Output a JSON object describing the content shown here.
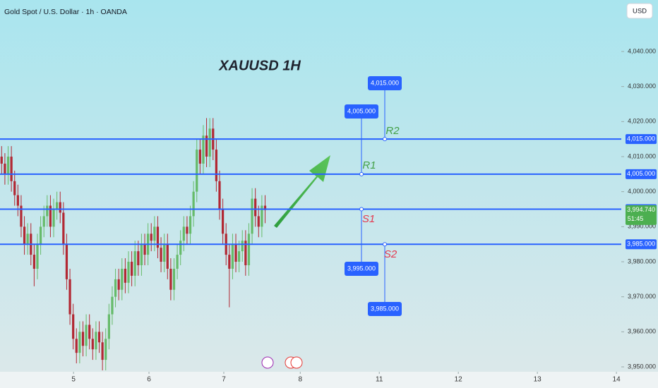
{
  "header": {
    "symbol": "Gold Spot / U.S. Dollar · 1h · OANDA",
    "currency": "USD"
  },
  "chart_data": {
    "type": "candlestick",
    "title": "XAUUSD 1H",
    "x": [
      0,
      1,
      2,
      3,
      4,
      5,
      6,
      7,
      8,
      9,
      10,
      11,
      12,
      13,
      14,
      15,
      16,
      17,
      18,
      19,
      20,
      21,
      22,
      23,
      24,
      25,
      26,
      27,
      28,
      29,
      30,
      31,
      32,
      33,
      34,
      35,
      36,
      37,
      38,
      39,
      40,
      41,
      42,
      43,
      44,
      45,
      46,
      47,
      48,
      49,
      50,
      51,
      52,
      53,
      54,
      55,
      56,
      57,
      58,
      59,
      60,
      61,
      62,
      63,
      64,
      65,
      66,
      67,
      68,
      69,
      70,
      71,
      72,
      73,
      74,
      75,
      76,
      77,
      78,
      79,
      80,
      81
    ],
    "open": [
      4010,
      4008,
      4005,
      4010,
      4003,
      3999,
      3996,
      3990,
      3985,
      3988,
      3982,
      3978,
      3985,
      3990,
      3993,
      3996,
      3990,
      3995,
      3997,
      3994,
      3985,
      3975,
      3965,
      3958,
      3954,
      3960,
      3956,
      3962,
      3958,
      3955,
      3960,
      3957,
      3952,
      3958,
      3965,
      3970,
      3975,
      3972,
      3978,
      3974,
      3980,
      3976,
      3983,
      3979,
      3985,
      3982,
      3988,
      3986,
      3990,
      3984,
      3980,
      3985,
      3978,
      3972,
      3978,
      3982,
      3986,
      3990,
      3988,
      3993,
      4000,
      4012,
      4008,
      4016,
      4010,
      4018,
      4012,
      4003,
      3995,
      3988,
      3982,
      3978,
      3985,
      3980,
      3983,
      3986,
      3979,
      3988,
      3998,
      3993,
      3990,
      3996
    ],
    "high": [
      4013,
      4011,
      4013,
      4013,
      4006,
      4002,
      3999,
      3993,
      3991,
      3991,
      3985,
      3988,
      3993,
      3996,
      3999,
      3999,
      3998,
      4000,
      4000,
      3997,
      3988,
      3978,
      3968,
      3961,
      3963,
      3963,
      3965,
      3965,
      3961,
      3963,
      3963,
      3960,
      3961,
      3968,
      3973,
      3978,
      3978,
      3981,
      3981,
      3983,
      3983,
      3986,
      3986,
      3988,
      3988,
      3991,
      3991,
      3993,
      3993,
      3987,
      3988,
      3988,
      3981,
      3981,
      3985,
      3989,
      3993,
      3993,
      3996,
      4003,
      4015,
      4015,
      4019,
      4021,
      4021,
      4021,
      4015,
      4006,
      3998,
      3991,
      3985,
      3988,
      3988,
      3986,
      3989,
      3989,
      3991,
      4001,
      4001,
      3996,
      3999,
      3999
    ],
    "low": [
      4005,
      4002,
      4002,
      4000,
      3996,
      3993,
      3987,
      3982,
      3982,
      3979,
      3973,
      3975,
      3982,
      3987,
      3990,
      3987,
      3987,
      3992,
      3991,
      3982,
      3972,
      3962,
      3955,
      3951,
      3951,
      3953,
      3953,
      3955,
      3952,
      3952,
      3954,
      3949,
      3949,
      3955,
      3962,
      3967,
      3969,
      3969,
      3971,
      3971,
      3973,
      3973,
      3976,
      3976,
      3979,
      3979,
      3983,
      3983,
      3981,
      3977,
      3977,
      3975,
      3969,
      3969,
      3975,
      3979,
      3983,
      3985,
      3985,
      3990,
      3997,
      4005,
      4005,
      4007,
      4007,
      4009,
      4000,
      3992,
      3985,
      3979,
      3967,
      3975,
      3977,
      3977,
      3980,
      3976,
      3976,
      3985,
      3990,
      3987,
      3987,
      3991
    ],
    "close": [
      4008,
      4005,
      4010,
      4003,
      3999,
      3996,
      3990,
      3985,
      3988,
      3982,
      3978,
      3985,
      3990,
      3993,
      3996,
      3990,
      3995,
      3997,
      3994,
      3985,
      3975,
      3965,
      3958,
      3954,
      3960,
      3956,
      3962,
      3958,
      3955,
      3960,
      3957,
      3952,
      3958,
      3965,
      3970,
      3975,
      3972,
      3978,
      3974,
      3980,
      3976,
      3983,
      3979,
      3985,
      3982,
      3988,
      3986,
      3990,
      3984,
      3980,
      3985,
      3978,
      3972,
      3978,
      3982,
      3986,
      3990,
      3988,
      3993,
      4000,
      4012,
      4008,
      4016,
      4010,
      4018,
      4012,
      4003,
      3995,
      3988,
      3982,
      3978,
      3985,
      3980,
      3983,
      3986,
      3979,
      3988,
      3998,
      3993,
      3990,
      3996,
      3994.74
    ],
    "up_color": "#66bb6a",
    "down_color": "#b22833",
    "xlim": [
      -0.5,
      190.5
    ],
    "xticks": [
      {
        "value": 22.1,
        "label": "5"
      },
      {
        "value": 45.3,
        "label": "6"
      },
      {
        "value": 68.3,
        "label": "7"
      },
      {
        "value": 91.8,
        "label": "8"
      },
      {
        "value": 116.1,
        "label": "11"
      },
      {
        "value": 140.4,
        "label": "12"
      },
      {
        "value": 164.7,
        "label": "13"
      },
      {
        "value": 189.0,
        "label": "14"
      }
    ],
    "ylim": [
      3949,
      4054.7
    ],
    "yticks": [
      {
        "value": 3950,
        "label": "3,950.000"
      },
      {
        "value": 3960,
        "label": "3,960.000"
      },
      {
        "value": 3970,
        "label": "3,970.000"
      },
      {
        "value": 3980,
        "label": "3,980.000"
      },
      {
        "value": 3990,
        "label": "3,990.000"
      },
      {
        "value": 4000,
        "label": "4,000.000"
      },
      {
        "value": 4010,
        "label": "4,010.000"
      },
      {
        "value": 4020,
        "label": "4,020.000"
      },
      {
        "value": 4030,
        "label": "4,030.000"
      },
      {
        "value": 4040,
        "label": "4,040.000"
      }
    ],
    "level_color": "#2962ff",
    "levels": [
      {
        "name": "R2",
        "value": 4015,
        "label": "4,015.000",
        "color": "#43a047"
      },
      {
        "name": "R1",
        "value": 4005,
        "label": "4,005.000",
        "color": "#43a047"
      },
      {
        "name": "S1",
        "value": 3995,
        "label": "3,995.000",
        "color": "#e53950"
      },
      {
        "name": "S2",
        "value": 3985,
        "label": "3,985.000",
        "color": "#e53950"
      }
    ],
    "current": {
      "value": 3994.74,
      "label": "3,994.740",
      "countdown": "51:45",
      "color": "#4caf50"
    }
  }
}
